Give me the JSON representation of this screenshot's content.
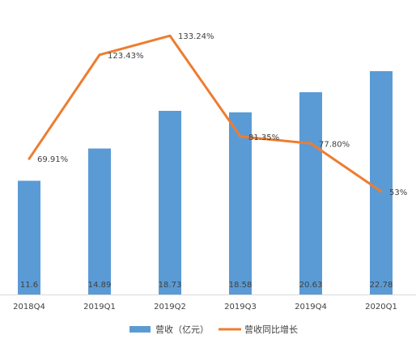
{
  "chart_data": {
    "type": "bar",
    "categories": [
      "2018Q4",
      "2019Q1",
      "2019Q2",
      "2019Q3",
      "2019Q4",
      "2020Q1"
    ],
    "series": [
      {
        "name": "营收（亿元）",
        "type": "bar",
        "axis": "left",
        "values": [
          11.6,
          14.89,
          18.73,
          18.58,
          20.63,
          22.78
        ],
        "labels": [
          "11.6",
          "14.89",
          "18.73",
          "18.58",
          "20.63",
          "22.78"
        ]
      },
      {
        "name": "营收同比增长",
        "type": "line",
        "axis": "right",
        "values": [
          69.91,
          123.43,
          133.24,
          81.35,
          77.8,
          53
        ],
        "labels": [
          "69.91%",
          "123.43%",
          "133.24%",
          "81.35%",
          "77.80%",
          "53%"
        ]
      }
    ],
    "ylim": [
      0,
      25
    ],
    "y2lim": [
      0,
      140
    ],
    "grid": false,
    "legend": "bottom",
    "colors": {
      "bar": "#5B9BD5",
      "line": "#ED7D31"
    }
  }
}
